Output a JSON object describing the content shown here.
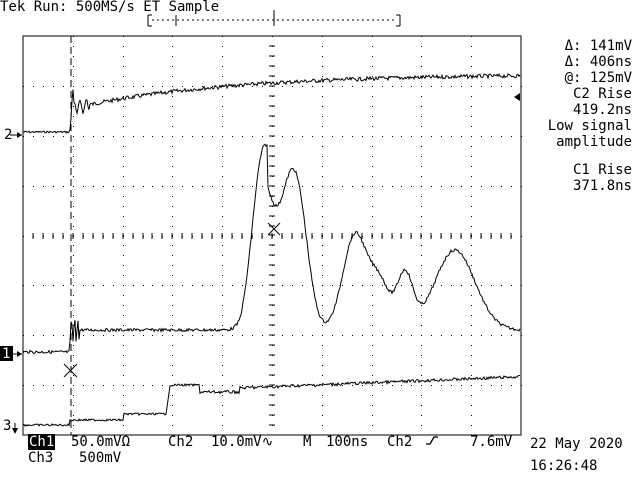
{
  "header": {
    "title": "Tek Run: 500MS/s ET Sample"
  },
  "cursor_readout": {
    "delta_v": "Δ: 141mV",
    "delta_t": "Δ: 406ns",
    "at_v": "@: 125mV"
  },
  "measurements": {
    "m1_title": "C2 Rise",
    "m1_value": "419.2ns",
    "m1_note1": "Low signal",
    "m1_note2": "amplitude",
    "m2_title": "C1 Rise",
    "m2_value": "371.8ns"
  },
  "channel_markers": {
    "ch2": "2",
    "ch1": "1",
    "ch3": "3"
  },
  "footer": {
    "ch1_label": "Ch1",
    "ch1_scale": "50.0mVΩ",
    "ch2_label": "Ch2",
    "ch2_scale": "10.0mV∿",
    "timebase_label": "M",
    "timebase": "100ns",
    "trigger_src": "Ch2",
    "trigger_level": "7.6mV",
    "ch3_label": "Ch3",
    "ch3_scale": "500mV",
    "date": "22 May 2020",
    "time": "16:26:48"
  },
  "colors": {
    "background": "#ffffff",
    "foreground": "#000000"
  }
}
